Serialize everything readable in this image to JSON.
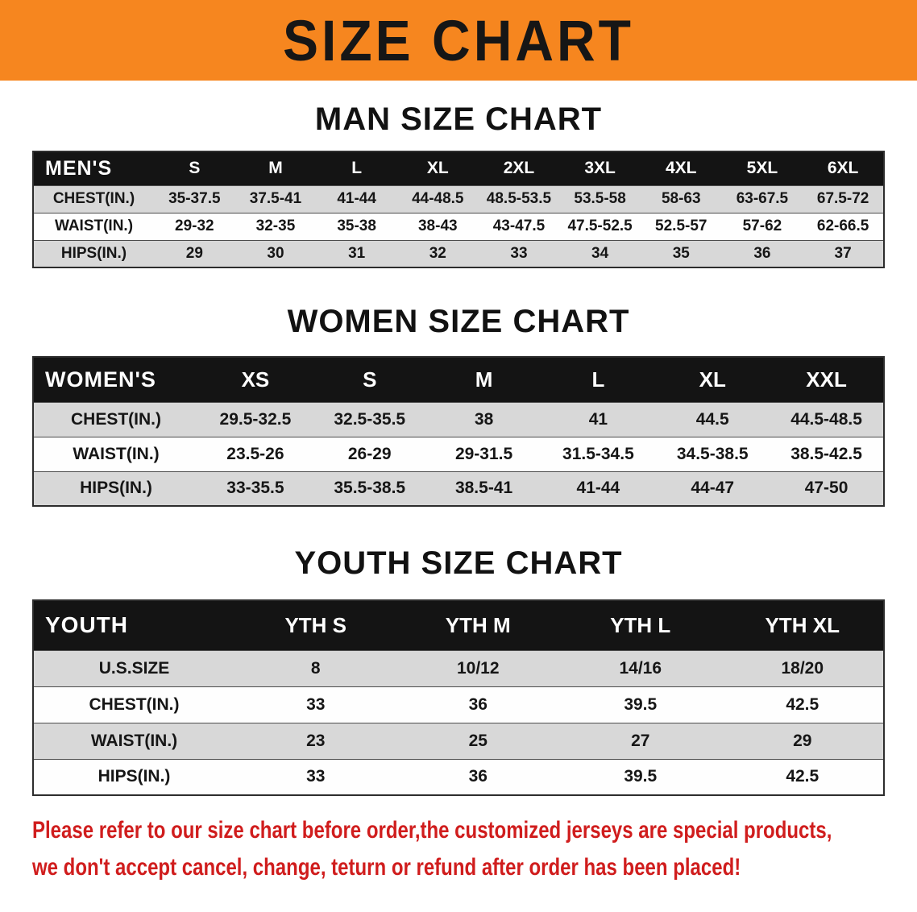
{
  "banner": {
    "title": "SIZE CHART",
    "bg_color": "#f6861f"
  },
  "sections": [
    {
      "heading": "MAN SIZE CHART",
      "key": "men",
      "header": [
        "MEN'S",
        "S",
        "M",
        "L",
        "XL",
        "2XL",
        "3XL",
        "4XL",
        "5XL",
        "6XL"
      ],
      "rows": [
        {
          "label": "CHEST(IN.)",
          "values": [
            "35-37.5",
            "37.5-41",
            "41-44",
            "44-48.5",
            "48.5-53.5",
            "53.5-58",
            "58-63",
            "63-67.5",
            "67.5-72"
          ]
        },
        {
          "label": "WAIST(IN.)",
          "values": [
            "29-32",
            "32-35",
            "35-38",
            "38-43",
            "43-47.5",
            "47.5-52.5",
            "52.5-57",
            "57-62",
            "62-66.5"
          ]
        },
        {
          "label": "HIPS(IN.)",
          "values": [
            "29",
            "30",
            "31",
            "32",
            "33",
            "34",
            "35",
            "36",
            "37"
          ]
        }
      ]
    },
    {
      "heading": "WOMEN SIZE CHART",
      "key": "women",
      "header": [
        "WOMEN'S",
        "XS",
        "S",
        "M",
        "L",
        "XL",
        "XXL"
      ],
      "rows": [
        {
          "label": "CHEST(IN.)",
          "values": [
            "29.5-32.5",
            "32.5-35.5",
            "38",
            "41",
            "44.5",
            "44.5-48.5"
          ]
        },
        {
          "label": "WAIST(IN.)",
          "values": [
            "23.5-26",
            "26-29",
            "29-31.5",
            "31.5-34.5",
            "34.5-38.5",
            "38.5-42.5"
          ]
        },
        {
          "label": "HIPS(IN.)",
          "values": [
            "33-35.5",
            "35.5-38.5",
            "38.5-41",
            "41-44",
            "44-47",
            "47-50"
          ]
        }
      ]
    },
    {
      "heading": "YOUTH SIZE CHART",
      "key": "youth",
      "header": [
        "YOUTH",
        "YTH S",
        "YTH M",
        "YTH L",
        "YTH XL"
      ],
      "rows": [
        {
          "label": "U.S.SIZE",
          "values": [
            "8",
            "10/12",
            "14/16",
            "18/20"
          ]
        },
        {
          "label": "CHEST(IN.)",
          "values": [
            "33",
            "36",
            "39.5",
            "42.5"
          ]
        },
        {
          "label": "WAIST(IN.)",
          "values": [
            "23",
            "25",
            "27",
            "29"
          ]
        },
        {
          "label": "HIPS(IN.)",
          "values": [
            "33",
            "36",
            "39.5",
            "42.5"
          ]
        }
      ]
    }
  ],
  "disclaimer": {
    "line1": "Please refer to our size chart before order,the customized jerseys are special products,",
    "line2": "we don't accept cancel, change, teturn or refund after order has been placed!",
    "color": "#d01d1d"
  }
}
